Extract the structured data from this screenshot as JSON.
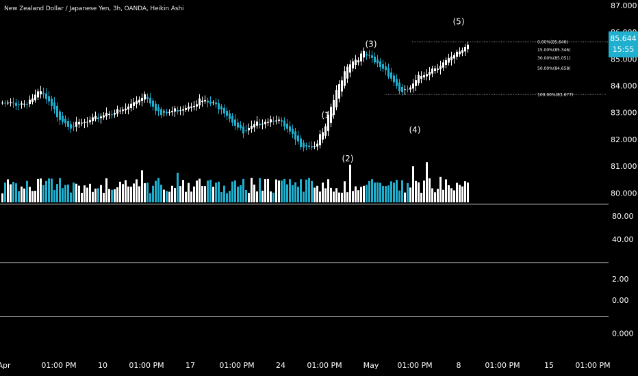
{
  "header": {
    "title": "New Zealand Dollar / Japanese Yen, 3h, OANDA, Heikin Ashi"
  },
  "price_tag": {
    "price": "85.644",
    "countdown": "15:55"
  },
  "colors": {
    "up": "#ffffff",
    "down": "#1fb0d0",
    "background": "#000000",
    "separator": "#dddddd",
    "fib_line": "#9a9a9a"
  },
  "chart_data": [
    {
      "type": "candlestick",
      "title": "",
      "xlabel": "",
      "ylabel": "",
      "ylim": [
        79.6,
        87.2
      ],
      "y_ticks": [
        "87.000",
        "86.000",
        "85.000",
        "84.000",
        "83.000",
        "82.000",
        "81.000",
        "80.000"
      ],
      "y_tick_values": [
        87,
        86,
        85,
        84,
        83,
        82,
        81,
        80
      ],
      "x_ticks": [
        "Apr",
        "01:00 PM",
        "10",
        "01:00 PM",
        "17",
        "01:00 PM",
        "24",
        "01:00 PM",
        "May",
        "01:00 PM",
        "8",
        "01:00 PM",
        "15",
        "01:00 PM"
      ],
      "x_tick_bar_index": [
        1,
        21,
        37,
        53,
        69,
        86,
        102,
        118,
        135,
        151,
        167,
        183,
        200,
        216
      ],
      "close_path": {
        "bar_index": [
          0,
          8,
          14,
          20,
          25,
          32,
          38,
          44,
          52,
          58,
          66,
          72,
          80,
          88,
          95,
          100,
          108,
          114,
          118,
          120,
          124,
          126,
          132,
          136,
          140,
          146,
          150,
          152,
          156,
          164,
          170
        ],
        "close": [
          83.3,
          83.35,
          83.75,
          82.9,
          82.5,
          82.65,
          83.0,
          83.05,
          83.7,
          82.9,
          83.2,
          83.45,
          83.2,
          82.2,
          82.7,
          82.8,
          81.85,
          81.75,
          82.4,
          83.2,
          84.3,
          84.8,
          85.2,
          84.85,
          84.6,
          83.7,
          84.0,
          84.3,
          84.6,
          85.0,
          85.55
        ]
      },
      "wave_labels": [
        {
          "label": "(1)",
          "bar_index": 119,
          "price": 82.8
        },
        {
          "label": "(3)",
          "bar_index": 135,
          "price": 85.45
        },
        {
          "label": "(4)",
          "bar_index": 151,
          "price": 82.25
        },
        {
          "label": "(5)",
          "bar_index": 167,
          "price": 86.3
        }
      ],
      "fibonacci": {
        "bar_start": 140,
        "bar_end": 221,
        "levels": [
          {
            "label": "0.00%(85.640)",
            "pct": 0.0,
            "price": 85.64
          },
          {
            "label": "15.00%(85.346)",
            "pct": 15.0,
            "price": 85.346
          },
          {
            "label": "30.00%(85.051)",
            "pct": 30.0,
            "price": 85.051
          },
          {
            "label": "50.00%(84.658)",
            "pct": 50.0,
            "price": 84.658
          },
          {
            "label": "100.00%(83.677)",
            "pct": 100.0,
            "price": 83.677
          }
        ]
      }
    },
    {
      "type": "bar",
      "series": [
        {
          "values_hint": "volume"
        }
      ],
      "peak_label": {
        "label": "(2)",
        "bar_index": 127
      },
      "peak_bars": [
        {
          "bar_index": 51,
          "rel": 0.78
        },
        {
          "bar_index": 64,
          "rel": 0.72
        },
        {
          "bar_index": 127,
          "rel": 0.92
        },
        {
          "bar_index": 150,
          "rel": 0.88
        },
        {
          "bar_index": 155,
          "rel": 0.98
        },
        {
          "bar_index": 160,
          "rel": 0.62
        }
      ]
    },
    {
      "type": "line",
      "y_ticks": [
        "80.00",
        "40.00"
      ],
      "y_tick_values": [
        80,
        40
      ],
      "ylim": [
        0,
        100
      ]
    },
    {
      "type": "line",
      "y_ticks": [
        "2.00",
        "0.00"
      ],
      "y_tick_values": [
        2,
        0
      ],
      "ylim": [
        -1.5,
        3.5
      ]
    },
    {
      "type": "line",
      "y_ticks": [
        "0.000"
      ],
      "y_tick_values": [
        0
      ],
      "ylim": [
        -1,
        1
      ]
    }
  ]
}
